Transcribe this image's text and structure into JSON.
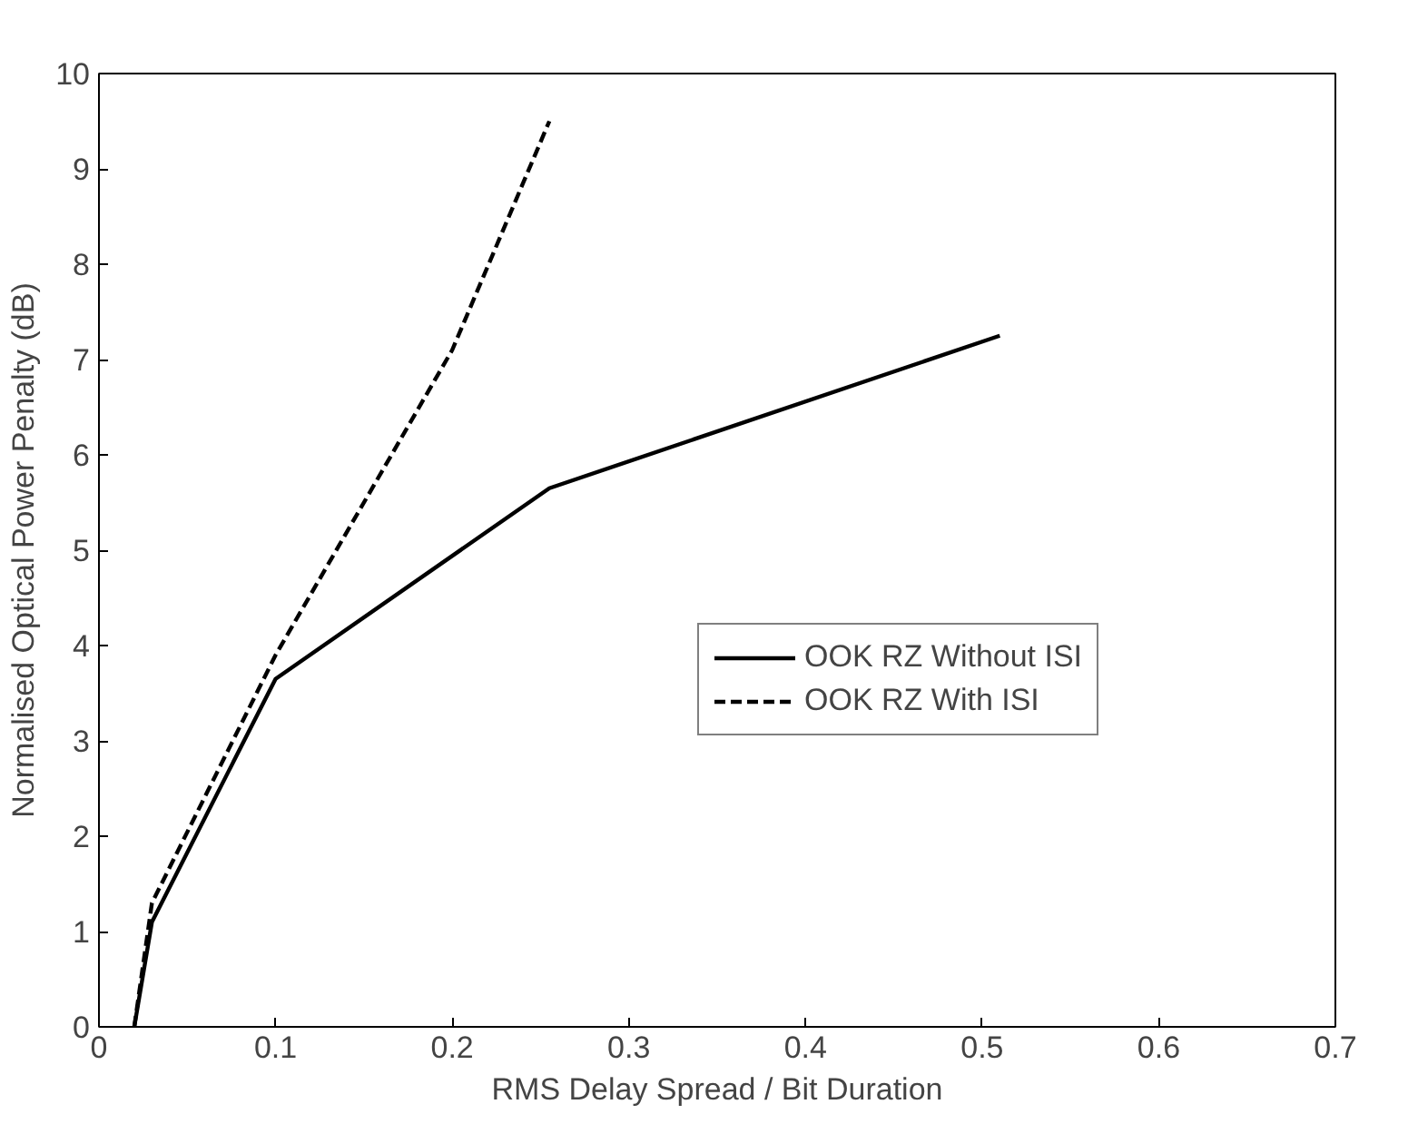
{
  "chart_data": {
    "type": "line",
    "xlabel": "RMS Delay Spread / Bit Duration",
    "ylabel": "Normalised Optical Power Penalty (dB)",
    "xlim": [
      0,
      0.7
    ],
    "xticks": [
      0,
      0.1,
      0.2,
      0.3,
      0.4,
      0.5,
      0.6,
      0.7
    ],
    "ylim": [
      0,
      10
    ],
    "yticks": [
      0,
      1,
      2,
      3,
      4,
      5,
      6,
      7,
      8,
      9,
      10
    ],
    "grid": false,
    "legend": "right",
    "marker": "none",
    "series": [
      {
        "name": "OOK RZ Without ISI",
        "color": "#000000",
        "line_style": "solid",
        "x": [
          0.02,
          0.03,
          0.1,
          0.255,
          0.51
        ],
        "values": [
          0,
          1.1,
          3.65,
          5.65,
          7.25
        ]
      },
      {
        "name": "OOK RZ With ISI",
        "color": "#000000",
        "line_style": "dashed",
        "x": [
          0.02,
          0.03,
          0.1,
          0.2,
          0.255
        ],
        "values": [
          0,
          1.3,
          3.9,
          7.1,
          9.5
        ]
      }
    ]
  }
}
